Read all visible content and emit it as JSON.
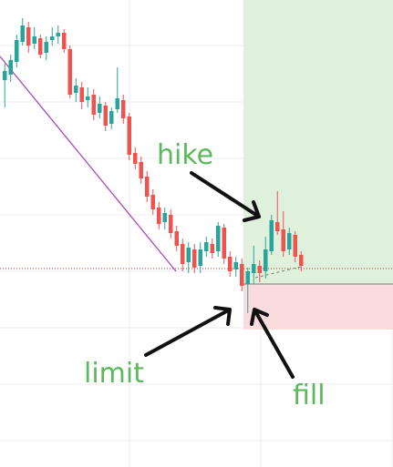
{
  "colors": {
    "bull": "#26a69a",
    "bear": "#ef5350",
    "grid": "#eeeeee",
    "target_zone": "#dff0dc",
    "stop_zone": "#fbdcde",
    "trendline": "#ab47bc",
    "level": "#c62828",
    "arrow": "#111111",
    "annotation_text": "#5cb85c"
  },
  "chart_data": {
    "type": "candlestick",
    "title": "",
    "xlabel": "",
    "ylabel": "",
    "ylim": [
      0,
      513
    ],
    "grid": true,
    "legend": "none",
    "candles": [
      [
        0,
        88,
        78,
        118,
        70
      ],
      [
        1,
        82,
        66,
        90,
        60
      ],
      [
        2,
        68,
        44,
        74,
        38
      ],
      [
        3,
        46,
        28,
        50,
        20
      ],
      [
        4,
        30,
        50,
        58,
        24
      ],
      [
        5,
        48,
        40,
        54,
        30
      ],
      [
        6,
        42,
        60,
        64,
        38
      ],
      [
        7,
        58,
        46,
        66,
        40
      ],
      [
        8,
        44,
        40,
        50,
        30
      ],
      [
        9,
        40,
        36,
        48,
        28
      ],
      [
        10,
        36,
        54,
        58,
        32
      ],
      [
        11,
        54,
        104,
        108,
        50
      ],
      [
        12,
        102,
        94,
        112,
        86
      ],
      [
        13,
        96,
        112,
        120,
        90
      ],
      [
        14,
        110,
        106,
        118,
        96
      ],
      [
        15,
        104,
        126,
        132,
        98
      ],
      [
        16,
        124,
        114,
        130,
        106
      ],
      [
        17,
        116,
        138,
        144,
        112
      ],
      [
        18,
        136,
        122,
        142,
        118
      ],
      [
        19,
        120,
        108,
        124,
        74
      ],
      [
        20,
        110,
        130,
        136,
        104
      ],
      [
        21,
        128,
        170,
        176,
        124
      ],
      [
        22,
        168,
        180,
        186,
        162
      ],
      [
        23,
        178,
        196,
        202,
        172
      ],
      [
        24,
        194,
        216,
        222,
        188
      ],
      [
        25,
        214,
        230,
        236,
        208
      ],
      [
        26,
        228,
        246,
        252,
        222
      ],
      [
        27,
        244,
        234,
        252,
        228
      ],
      [
        28,
        236,
        256,
        262,
        230
      ],
      [
        29,
        254,
        270,
        276,
        248
      ],
      [
        30,
        268,
        290,
        298,
        262
      ],
      [
        31,
        288,
        272,
        300,
        266
      ],
      [
        32,
        274,
        294,
        300,
        268
      ],
      [
        33,
        292,
        274,
        300,
        266
      ],
      [
        34,
        276,
        266,
        282,
        260
      ],
      [
        35,
        268,
        278,
        284,
        262
      ],
      [
        36,
        276,
        248,
        282,
        244
      ],
      [
        37,
        250,
        284,
        290,
        246
      ],
      [
        38,
        282,
        298,
        304,
        276
      ],
      [
        39,
        296,
        288,
        304,
        282
      ],
      [
        40,
        290,
        314,
        320,
        284
      ],
      [
        41,
        312,
        298,
        344,
        294
      ],
      [
        42,
        300,
        290,
        312,
        270
      ],
      [
        43,
        292,
        300,
        310,
        286
      ],
      [
        44,
        298,
        274,
        306,
        260
      ],
      [
        45,
        276,
        242,
        280,
        236
      ],
      [
        46,
        244,
        254,
        258,
        210
      ],
      [
        47,
        252,
        276,
        282,
        232
      ],
      [
        48,
        274,
        256,
        280,
        250
      ],
      [
        49,
        258,
        282,
        288,
        254
      ],
      [
        50,
        280,
        292,
        298,
        276
      ]
    ],
    "zones": {
      "target": [
        0,
        312
      ],
      "stop": [
        312,
        362
      ]
    },
    "trendline": {
      "from": [
        0,
        62
      ],
      "to": [
        193,
        298
      ]
    },
    "level": 295,
    "annotations": [
      "hike",
      "limit",
      "fill"
    ]
  }
}
